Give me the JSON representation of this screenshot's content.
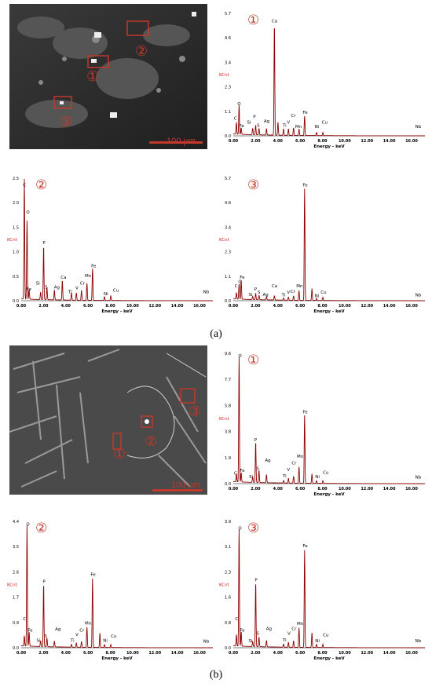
{
  "panel_labels": [
    "(a)",
    "(b)"
  ],
  "sem_images": [
    {
      "scale_label": "100 µm",
      "markers": [
        "①",
        "②",
        "③"
      ]
    },
    {
      "scale_label": "100 µm",
      "markers": [
        "①",
        "②",
        "③"
      ]
    }
  ],
  "colors": {
    "spectrum_line": "#8b0000",
    "tick_text": "#000000",
    "kcnt": "#cc2222",
    "marker": "#c0392b"
  },
  "chart_data": [
    {
      "type": "line",
      "title": "",
      "marker_label": "①",
      "xlabel": "Energy - keV",
      "ylabel": "KCnt",
      "xlim": [
        0,
        17.2
      ],
      "ylim": [
        0,
        5.7
      ],
      "xticks": [
        "0.00",
        "2.00",
        "4.00",
        "6.00",
        "8.00",
        "10.00",
        "12.00",
        "14.00",
        "16.00"
      ],
      "yticks": [
        "0.0",
        "1.1",
        "2.3",
        "3.4",
        "4.6",
        "5.7"
      ],
      "peaks": [
        {
          "x": 0.28,
          "y": 0.55,
          "label": "C",
          "lx": 0.2,
          "ly": 0.68
        },
        {
          "x": 0.52,
          "y": 1.35,
          "label": "O",
          "lx": 0.52,
          "ly": 1.35
        },
        {
          "x": 0.71,
          "y": 0.3,
          "label": "Fe",
          "lx": 0.75,
          "ly": 0.32
        },
        {
          "x": 1.74,
          "y": 0.3,
          "label": "Si",
          "lx": 1.4,
          "ly": 0.5
        },
        {
          "x": 2.01,
          "y": 0.45,
          "label": "P",
          "lx": 1.9,
          "ly": 0.75
        },
        {
          "x": 2.31,
          "y": 0.3,
          "label": "S",
          "lx": 2.25,
          "ly": 0.35
        },
        {
          "x": 3.69,
          "y": 5.2,
          "label": "Ca",
          "lx": 3.69,
          "ly": 5.2
        },
        {
          "x": 2.98,
          "y": 0.3,
          "label": "Ag",
          "lx": 3.0,
          "ly": 0.55
        },
        {
          "x": 4.01,
          "y": 0.6,
          "label": "",
          "lx": 0,
          "ly": 0
        },
        {
          "x": 4.51,
          "y": 0.3,
          "label": "Ti",
          "lx": 4.6,
          "ly": 0.35
        },
        {
          "x": 4.95,
          "y": 0.3,
          "label": "V",
          "lx": 4.95,
          "ly": 0.5
        },
        {
          "x": 5.41,
          "y": 0.35,
          "label": "Cr",
          "lx": 5.4,
          "ly": 0.8
        },
        {
          "x": 5.9,
          "y": 0.3,
          "label": "Mn",
          "lx": 5.85,
          "ly": 0.3
        },
        {
          "x": 6.4,
          "y": 0.9,
          "label": "Fe",
          "lx": 6.45,
          "ly": 0.95
        },
        {
          "x": 7.47,
          "y": 0.15,
          "label": "Ni",
          "lx": 7.5,
          "ly": 0.3
        },
        {
          "x": 8.04,
          "y": 0.15,
          "label": "Cu",
          "lx": 8.2,
          "ly": 0.5
        },
        {
          "x": 16.6,
          "y": 0.0,
          "label": "Nb",
          "lx": 16.6,
          "ly": 0.3
        }
      ]
    },
    {
      "type": "line",
      "title": "",
      "marker_label": "②",
      "xlabel": "Energy - keV",
      "ylabel": "KCnt",
      "xlim": [
        0,
        17.2
      ],
      "ylim": [
        0,
        2.5
      ],
      "xticks": [
        "0.00",
        "2.00",
        "4.00",
        "6.00",
        "8.00",
        "10.00",
        "12.00",
        "14.00",
        "16.00"
      ],
      "yticks": [
        "0.0",
        "0.5",
        "1.0",
        "1.5",
        "2.0",
        "2.5"
      ],
      "peaks": [
        {
          "x": 0.28,
          "y": 2.45,
          "label": "C",
          "lx": 0.3,
          "ly": 2.3
        },
        {
          "x": 0.52,
          "y": 1.6,
          "label": "O",
          "lx": 0.6,
          "ly": 1.75
        },
        {
          "x": 0.71,
          "y": 0.2,
          "label": "Fe",
          "lx": 0.7,
          "ly": 0.18
        },
        {
          "x": 1.74,
          "y": 0.15,
          "label": "Si",
          "lx": 1.5,
          "ly": 0.3
        },
        {
          "x": 2.01,
          "y": 1.1,
          "label": "P",
          "lx": 2.05,
          "ly": 1.12
        },
        {
          "x": 2.31,
          "y": 0.25,
          "label": "S",
          "lx": 2.25,
          "ly": 0.22
        },
        {
          "x": 2.98,
          "y": 0.2,
          "label": "Ag",
          "lx": 3.2,
          "ly": 0.22
        },
        {
          "x": 3.69,
          "y": 0.4,
          "label": "Ca",
          "lx": 3.8,
          "ly": 0.42
        },
        {
          "x": 4.51,
          "y": 0.15,
          "label": "Ti",
          "lx": 4.4,
          "ly": 0.12
        },
        {
          "x": 4.95,
          "y": 0.15,
          "label": "V",
          "lx": 5.0,
          "ly": 0.2
        },
        {
          "x": 5.41,
          "y": 0.2,
          "label": "Cr",
          "lx": 5.5,
          "ly": 0.3
        },
        {
          "x": 5.9,
          "y": 0.35,
          "label": "Mn",
          "lx": 6.0,
          "ly": 0.45
        },
        {
          "x": 6.4,
          "y": 0.65,
          "label": "Fe",
          "lx": 6.5,
          "ly": 0.65
        },
        {
          "x": 7.47,
          "y": 0.08,
          "label": "Ni",
          "lx": 7.6,
          "ly": 0.08
        },
        {
          "x": 8.04,
          "y": 0.1,
          "label": "Cu",
          "lx": 8.5,
          "ly": 0.15
        },
        {
          "x": 16.6,
          "y": 0.0,
          "label": "Nb",
          "lx": 16.6,
          "ly": 0.12
        }
      ]
    },
    {
      "type": "line",
      "title": "",
      "marker_label": "③",
      "xlabel": "Energy - keV",
      "ylabel": "KCnt",
      "xlim": [
        0,
        17.2
      ],
      "ylim": [
        0,
        5.7
      ],
      "xticks": [
        "0.00",
        "2.00",
        "4.00",
        "6.00",
        "8.00",
        "10.00",
        "12.00",
        "14.00",
        "16.00"
      ],
      "yticks": [
        "0.0",
        "1.1",
        "2.3",
        "3.4",
        "4.6",
        "5.7"
      ],
      "peaks": [
        {
          "x": 0.28,
          "y": 0.3,
          "label": "C",
          "lx": 0.25,
          "ly": 0.55
        },
        {
          "x": 0.52,
          "y": 0.7,
          "label": "O",
          "lx": 0.6,
          "ly": 0.75
        },
        {
          "x": 0.71,
          "y": 0.9,
          "label": "Fe",
          "lx": 0.8,
          "ly": 0.95
        },
        {
          "x": 1.74,
          "y": 0.15,
          "label": "Si",
          "lx": 1.55,
          "ly": 0.15
        },
        {
          "x": 2.01,
          "y": 0.3,
          "label": "P",
          "lx": 2.0,
          "ly": 0.4
        },
        {
          "x": 2.31,
          "y": 0.2,
          "label": "S",
          "lx": 2.3,
          "ly": 0.25
        },
        {
          "x": 2.98,
          "y": 0.15,
          "label": "Ag",
          "lx": 2.9,
          "ly": 0.15
        },
        {
          "x": 3.69,
          "y": 0.2,
          "label": "Ca",
          "lx": 3.7,
          "ly": 0.55
        },
        {
          "x": 4.51,
          "y": 0.1,
          "label": "Ti",
          "lx": 4.5,
          "ly": 0.12
        },
        {
          "x": 4.95,
          "y": 0.15,
          "label": "V",
          "lx": 4.95,
          "ly": 0.25
        },
        {
          "x": 5.41,
          "y": 0.2,
          "label": "Cr",
          "lx": 5.35,
          "ly": 0.3
        },
        {
          "x": 5.9,
          "y": 0.45,
          "label": "Mn",
          "lx": 5.95,
          "ly": 0.55
        },
        {
          "x": 6.4,
          "y": 5.2,
          "label": "Fe",
          "lx": 6.45,
          "ly": 5.25
        },
        {
          "x": 7.06,
          "y": 0.55,
          "label": "",
          "lx": 0,
          "ly": 0
        },
        {
          "x": 7.47,
          "y": 0.1,
          "label": "Ni",
          "lx": 7.5,
          "ly": 0.1
        },
        {
          "x": 8.04,
          "y": 0.15,
          "label": "Cu",
          "lx": 8.1,
          "ly": 0.25
        },
        {
          "x": 16.6,
          "y": 0.0,
          "label": "Nb",
          "lx": 16.6,
          "ly": 0.12
        }
      ]
    },
    {
      "type": "line",
      "title": "",
      "marker_label": "①",
      "xlabel": "Energy - keV",
      "ylabel": "KCnt",
      "xlim": [
        0,
        17.2
      ],
      "ylim": [
        0,
        9.6
      ],
      "xticks": [
        "0.00",
        "2.00",
        "4.00",
        "6.00",
        "8.00",
        "10.00",
        "12.00",
        "14.00",
        "16.00"
      ],
      "yticks": [
        "0.0",
        "1.9",
        "3.8",
        "5.8",
        "7.7",
        "9.6"
      ],
      "peaks": [
        {
          "x": 0.28,
          "y": 0.6,
          "label": "C",
          "lx": 0.2,
          "ly": 0.55
        },
        {
          "x": 0.52,
          "y": 9.2,
          "label": "O",
          "lx": 0.6,
          "ly": 9.2
        },
        {
          "x": 0.71,
          "y": 0.7,
          "label": "Fe",
          "lx": 0.8,
          "ly": 0.75
        },
        {
          "x": 1.74,
          "y": 0.4,
          "label": "Si",
          "lx": 1.6,
          "ly": 0.3
        },
        {
          "x": 2.01,
          "y": 3.0,
          "label": "P",
          "lx": 2.0,
          "ly": 3.0
        },
        {
          "x": 2.31,
          "y": 0.9,
          "label": "S",
          "lx": 2.2,
          "ly": 0.9
        },
        {
          "x": 2.98,
          "y": 0.6,
          "label": "Ag",
          "lx": 3.1,
          "ly": 1.5
        },
        {
          "x": 4.51,
          "y": 0.2,
          "label": "Ti",
          "lx": 4.6,
          "ly": 0.35
        },
        {
          "x": 4.95,
          "y": 0.35,
          "label": "V",
          "lx": 4.95,
          "ly": 0.8
        },
        {
          "x": 5.41,
          "y": 0.5,
          "label": "Cr",
          "lx": 5.45,
          "ly": 1.3
        },
        {
          "x": 5.9,
          "y": 1.2,
          "label": "Mn",
          "lx": 6.0,
          "ly": 1.8
        },
        {
          "x": 6.4,
          "y": 5.0,
          "label": "Fe",
          "lx": 6.45,
          "ly": 5.05
        },
        {
          "x": 7.06,
          "y": 0.7,
          "label": "",
          "lx": 0,
          "ly": 0
        },
        {
          "x": 7.47,
          "y": 0.2,
          "label": "Ni",
          "lx": 7.55,
          "ly": 0.3
        },
        {
          "x": 8.04,
          "y": 0.2,
          "label": "Cu",
          "lx": 8.3,
          "ly": 0.6
        },
        {
          "x": 16.6,
          "y": 0.0,
          "label": "Nb",
          "lx": 16.6,
          "ly": 0.25
        }
      ]
    },
    {
      "type": "line",
      "title": "",
      "marker_label": "②",
      "xlabel": "Energy - keV",
      "ylabel": "KCnt",
      "xlim": [
        0,
        17.2
      ],
      "ylim": [
        0,
        4.4
      ],
      "xticks": [
        "0.00",
        "2.00",
        "4.00",
        "6.00",
        "8.00",
        "10.00",
        "12.00",
        "14.00",
        "16.00"
      ],
      "yticks": [
        "0.0",
        "0.9",
        "1.7",
        "2.6",
        "3.5",
        "4.4"
      ],
      "peaks": [
        {
          "x": 0.28,
          "y": 0.35,
          "label": "C",
          "lx": 0.3,
          "ly": 0.9
        },
        {
          "x": 0.52,
          "y": 4.2,
          "label": "O",
          "lx": 0.6,
          "ly": 4.2
        },
        {
          "x": 0.71,
          "y": 0.5,
          "label": "Fe",
          "lx": 0.8,
          "ly": 0.5
        },
        {
          "x": 1.74,
          "y": 0.2,
          "label": "Si",
          "lx": 1.55,
          "ly": 0.15
        },
        {
          "x": 2.01,
          "y": 2.2,
          "label": "P",
          "lx": 2.05,
          "ly": 2.2
        },
        {
          "x": 2.31,
          "y": 0.3,
          "label": "S",
          "lx": 2.2,
          "ly": 0.3
        },
        {
          "x": 2.98,
          "y": 0.2,
          "label": "Ag",
          "lx": 3.3,
          "ly": 0.55
        },
        {
          "x": 4.51,
          "y": 0.1,
          "label": "Ti",
          "lx": 4.6,
          "ly": 0.15
        },
        {
          "x": 4.95,
          "y": 0.15,
          "label": "V",
          "lx": 5.0,
          "ly": 0.35
        },
        {
          "x": 5.41,
          "y": 0.2,
          "label": "Cr",
          "lx": 5.45,
          "ly": 0.5
        },
        {
          "x": 5.9,
          "y": 0.7,
          "label": "Mn",
          "lx": 6.0,
          "ly": 0.75
        },
        {
          "x": 6.4,
          "y": 2.4,
          "label": "Fe",
          "lx": 6.45,
          "ly": 2.45
        },
        {
          "x": 7.06,
          "y": 0.5,
          "label": "",
          "lx": 0,
          "ly": 0
        },
        {
          "x": 7.47,
          "y": 0.1,
          "label": "Ni",
          "lx": 7.55,
          "ly": 0.15
        },
        {
          "x": 8.04,
          "y": 0.1,
          "label": "Cu",
          "lx": 8.3,
          "ly": 0.3
        },
        {
          "x": 16.6,
          "y": 0.0,
          "label": "Nb",
          "lx": 16.6,
          "ly": 0.12
        }
      ]
    },
    {
      "type": "line",
      "title": "",
      "marker_label": "③",
      "xlabel": "Energy - keV",
      "ylabel": "KCnt",
      "xlim": [
        0,
        17.2
      ],
      "ylim": [
        0,
        3.9
      ],
      "xticks": [
        "0.00",
        "2.00",
        "4.00",
        "6.00",
        "8.00",
        "10.00",
        "12.00",
        "14.00",
        "16.00"
      ],
      "yticks": [
        "0.0",
        "0.8",
        "1.6",
        "2.3",
        "3.1",
        "3.9"
      ],
      "peaks": [
        {
          "x": 0.28,
          "y": 0.35,
          "label": "C",
          "lx": 0.3,
          "ly": 0.8
        },
        {
          "x": 0.52,
          "y": 3.6,
          "label": "O",
          "lx": 0.6,
          "ly": 3.6
        },
        {
          "x": 0.71,
          "y": 0.45,
          "label": "Fe",
          "lx": 0.8,
          "ly": 0.45
        },
        {
          "x": 1.74,
          "y": 0.15,
          "label": "Si",
          "lx": 1.55,
          "ly": 0.12
        },
        {
          "x": 2.01,
          "y": 2.0,
          "label": "P",
          "lx": 2.05,
          "ly": 2.0
        },
        {
          "x": 2.31,
          "y": 0.3,
          "label": "S",
          "lx": 2.2,
          "ly": 0.35
        },
        {
          "x": 2.98,
          "y": 0.2,
          "label": "Ag",
          "lx": 3.2,
          "ly": 0.5
        },
        {
          "x": 4.51,
          "y": 0.1,
          "label": "Ti",
          "lx": 4.6,
          "ly": 0.15
        },
        {
          "x": 4.95,
          "y": 0.15,
          "label": "V",
          "lx": 5.0,
          "ly": 0.35
        },
        {
          "x": 5.41,
          "y": 0.2,
          "label": "Cr",
          "lx": 5.45,
          "ly": 0.5
        },
        {
          "x": 5.9,
          "y": 0.6,
          "label": "Mn",
          "lx": 6.0,
          "ly": 0.65
        },
        {
          "x": 6.4,
          "y": 3.0,
          "label": "Fe",
          "lx": 6.45,
          "ly": 3.05
        },
        {
          "x": 7.06,
          "y": 0.45,
          "label": "",
          "lx": 0,
          "ly": 0
        },
        {
          "x": 7.47,
          "y": 0.1,
          "label": "Ni",
          "lx": 7.55,
          "ly": 0.12
        },
        {
          "x": 8.04,
          "y": 0.1,
          "label": "Cu",
          "lx": 8.3,
          "ly": 0.3
        },
        {
          "x": 16.6,
          "y": 0.0,
          "label": "Nb",
          "lx": 16.6,
          "ly": 0.12
        }
      ]
    }
  ]
}
